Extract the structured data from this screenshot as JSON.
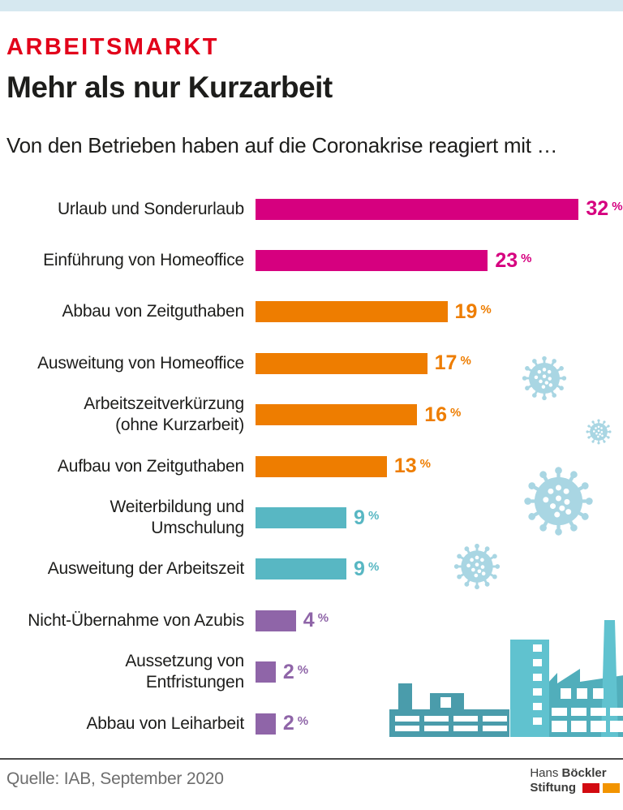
{
  "header": {
    "kicker": "ARBEITSMARKT",
    "kicker_color": "#e2001a",
    "title": "Mehr als nur Kurzarbeit",
    "subtitle": "Von den Betrieben haben auf die Coronakrise reagiert mit …",
    "top_strip_color": "#d6e8f0"
  },
  "chart_data": {
    "type": "bar",
    "orientation": "horizontal",
    "title": "Mehr als nur Kurzarbeit",
    "subtitle": "Von den Betrieben haben auf die Coronakrise reagiert mit …",
    "unit": "%",
    "xlim": [
      0,
      32
    ],
    "grid": false,
    "value_labels": true,
    "categories": [
      "Urlaub und Sonderurlaub",
      "Einführung von Homeoffice",
      "Abbau von Zeitguthaben",
      "Ausweitung von Homeoffice",
      "Arbeitszeitverkürzung (ohne Kurzarbeit)",
      "Aufbau von Zeitguthaben",
      "Weiterbildung und Umschulung",
      "Ausweitung der Arbeitszeit",
      "Nicht-Übernahme von Azubis",
      "Aussetzung von Entfristungen",
      "Abbau von Leiharbeit"
    ],
    "values": [
      32,
      23,
      19,
      17,
      16,
      13,
      9,
      9,
      4,
      2,
      2
    ],
    "bars": [
      {
        "label_lines": [
          "Urlaub und Sonderurlaub"
        ],
        "value": 32,
        "color": "#d6007f"
      },
      {
        "label_lines": [
          "Einführung von Homeoffice"
        ],
        "value": 23,
        "color": "#d6007f"
      },
      {
        "label_lines": [
          "Abbau von Zeitguthaben"
        ],
        "value": 19,
        "color": "#ee7d00"
      },
      {
        "label_lines": [
          "Ausweitung von Homeoffice"
        ],
        "value": 17,
        "color": "#ee7d00"
      },
      {
        "label_lines": [
          "Arbeitszeitverkürzung",
          "(ohne Kurzarbeit)"
        ],
        "value": 16,
        "color": "#ee7d00"
      },
      {
        "label_lines": [
          "Aufbau von Zeitguthaben"
        ],
        "value": 13,
        "color": "#ee7d00"
      },
      {
        "label_lines": [
          "Weiterbildung und",
          "Umschulung"
        ],
        "value": 9,
        "color": "#58b7c3"
      },
      {
        "label_lines": [
          "Ausweitung der Arbeitszeit"
        ],
        "value": 9,
        "color": "#58b7c3"
      },
      {
        "label_lines": [
          "Nicht-Übernahme von Azubis"
        ],
        "value": 4,
        "color": "#8f65a8"
      },
      {
        "label_lines": [
          "Aussetzung von",
          "Entfristungen"
        ],
        "value": 2,
        "color": "#8f65a8"
      },
      {
        "label_lines": [
          "Abbau von Leiharbeit"
        ],
        "value": 2,
        "color": "#8f65a8"
      }
    ]
  },
  "decorations": {
    "virus_color": "#a9d6e3",
    "factory_dark": "#4a9cab",
    "factory_mid": "#51aebb",
    "factory_light": "#60c2cf"
  },
  "footer": {
    "source": "Quelle: IAB, September 2020",
    "logo": {
      "name_regular": "Hans",
      "name_bold": "Böckler",
      "line2": "Stiftung",
      "block_red": "#d20a11",
      "block_orange": "#f29400"
    }
  }
}
